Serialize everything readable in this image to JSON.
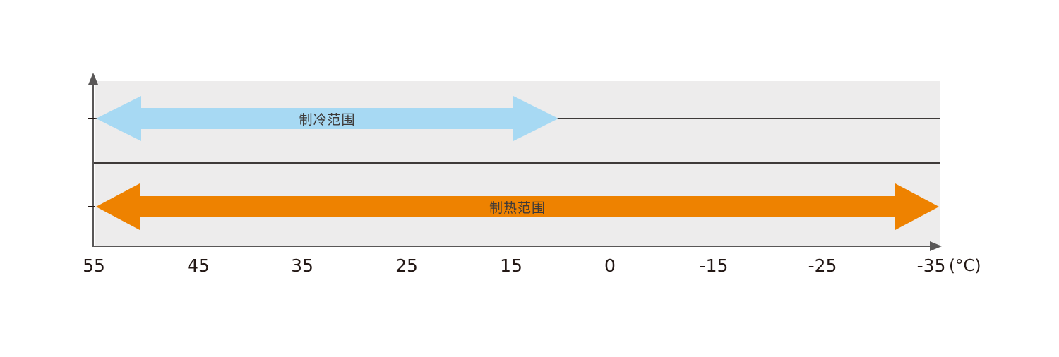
{
  "chart_data": {
    "type": "range-arrows",
    "x_axis": {
      "tick_labels": [
        "55",
        "45",
        "35",
        "25",
        "15",
        "0",
        "-15",
        "-25",
        "-35"
      ],
      "unit_label": "(°C)",
      "values_decrease_rightward": true
    },
    "series": [
      {
        "name": "制冷范围",
        "row": "top",
        "color": "#a7d9f3",
        "start_value": 55,
        "end_value_estimate": 8
      },
      {
        "name": "制热范围",
        "row": "bottom",
        "color": "#ee8200",
        "start_value": 55,
        "end_value": -35
      }
    ],
    "layout_hints": {
      "plot_background": "#edecec",
      "axis_color": "#595757",
      "guide_line_color": "#3e3a39",
      "tick_label_color": "#231815",
      "arrow_label_color": "#3e3a39",
      "grid": "off",
      "legend": "none"
    }
  }
}
